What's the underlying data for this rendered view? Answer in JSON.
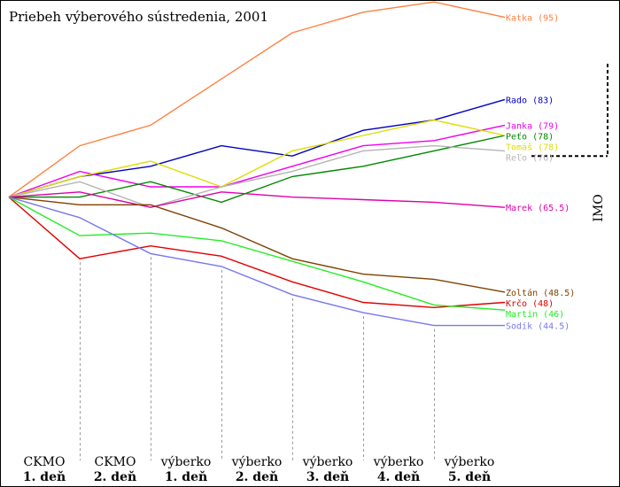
{
  "chart_data": {
    "type": "line",
    "title": "Priebeh výberového sústredenia, 2001",
    "categories": [
      {
        "line1": "CKMO",
        "line2": "1. deň"
      },
      {
        "line1": "CKMO",
        "line2": "2. deň"
      },
      {
        "line1": "výberko",
        "line2": "1. deň"
      },
      {
        "line1": "výberko",
        "line2": "2. deň"
      },
      {
        "line1": "výberko",
        "line2": "3. deň"
      },
      {
        "line1": "výberko",
        "line2": "4. deň"
      },
      {
        "line1": "výberko",
        "line2": "5. deň"
      }
    ],
    "x": [
      0,
      1,
      2,
      3,
      4,
      5,
      6,
      7
    ],
    "ylim": [
      0,
      100
    ],
    "imo": {
      "label": "IMO",
      "threshold": 71
    },
    "series": [
      {
        "name": "Katka",
        "label": "Katka (95)",
        "color": "#ff8040",
        "values": [
          63,
          73,
          77,
          86,
          95,
          99,
          101,
          98
        ]
      },
      {
        "name": "Rado",
        "label": "Rado (83)",
        "color": "#0000c0",
        "values": [
          63,
          67,
          69,
          73,
          71,
          76,
          78,
          82
        ]
      },
      {
        "name": "Janka",
        "label": "Janka (79)",
        "color": "#ee00ee",
        "values": [
          63,
          68,
          65,
          65,
          69,
          73,
          74,
          77
        ]
      },
      {
        "name": "Peťo",
        "label": "Peťo (78)",
        "color": "#008800",
        "values": [
          63,
          63,
          66,
          62,
          67,
          69,
          72,
          75
        ]
      },
      {
        "name": "Tomáš",
        "label": "Tomáš (78)",
        "color": "#dddd00",
        "values": [
          63,
          67,
          70,
          65,
          72,
          75,
          78,
          75
        ]
      },
      {
        "name": "Reľo",
        "label": "Reľo (76)",
        "color": "#b4b4b4",
        "values": [
          63,
          66,
          61,
          65,
          68,
          72,
          73,
          72
        ]
      },
      {
        "name": "Marek",
        "label": "Marek (65.5)",
        "color": "#dd00aa",
        "values": [
          63,
          64,
          61,
          64,
          63,
          62.5,
          62,
          61
        ]
      },
      {
        "name": "Zoltán",
        "label": "Zoltán (48.5)",
        "color": "#804000",
        "values": [
          63,
          61.5,
          61.5,
          57,
          51,
          48,
          47,
          44.5
        ]
      },
      {
        "name": "Krčo",
        "label": "Krčo (48)",
        "color": "#e00000",
        "values": [
          63,
          51,
          53.5,
          51.5,
          46.5,
          42.5,
          41.5,
          42.5
        ]
      },
      {
        "name": "Martin",
        "label": "Martin (46)",
        "color": "#22ee22",
        "values": [
          63,
          55.5,
          56,
          54.5,
          50.5,
          46.5,
          42,
          41
        ]
      },
      {
        "name": "Sodík",
        "label": "Sodík (44.5)",
        "color": "#7777ee",
        "values": [
          63,
          59,
          52,
          49.5,
          44,
          40.5,
          38,
          38
        ]
      }
    ]
  }
}
